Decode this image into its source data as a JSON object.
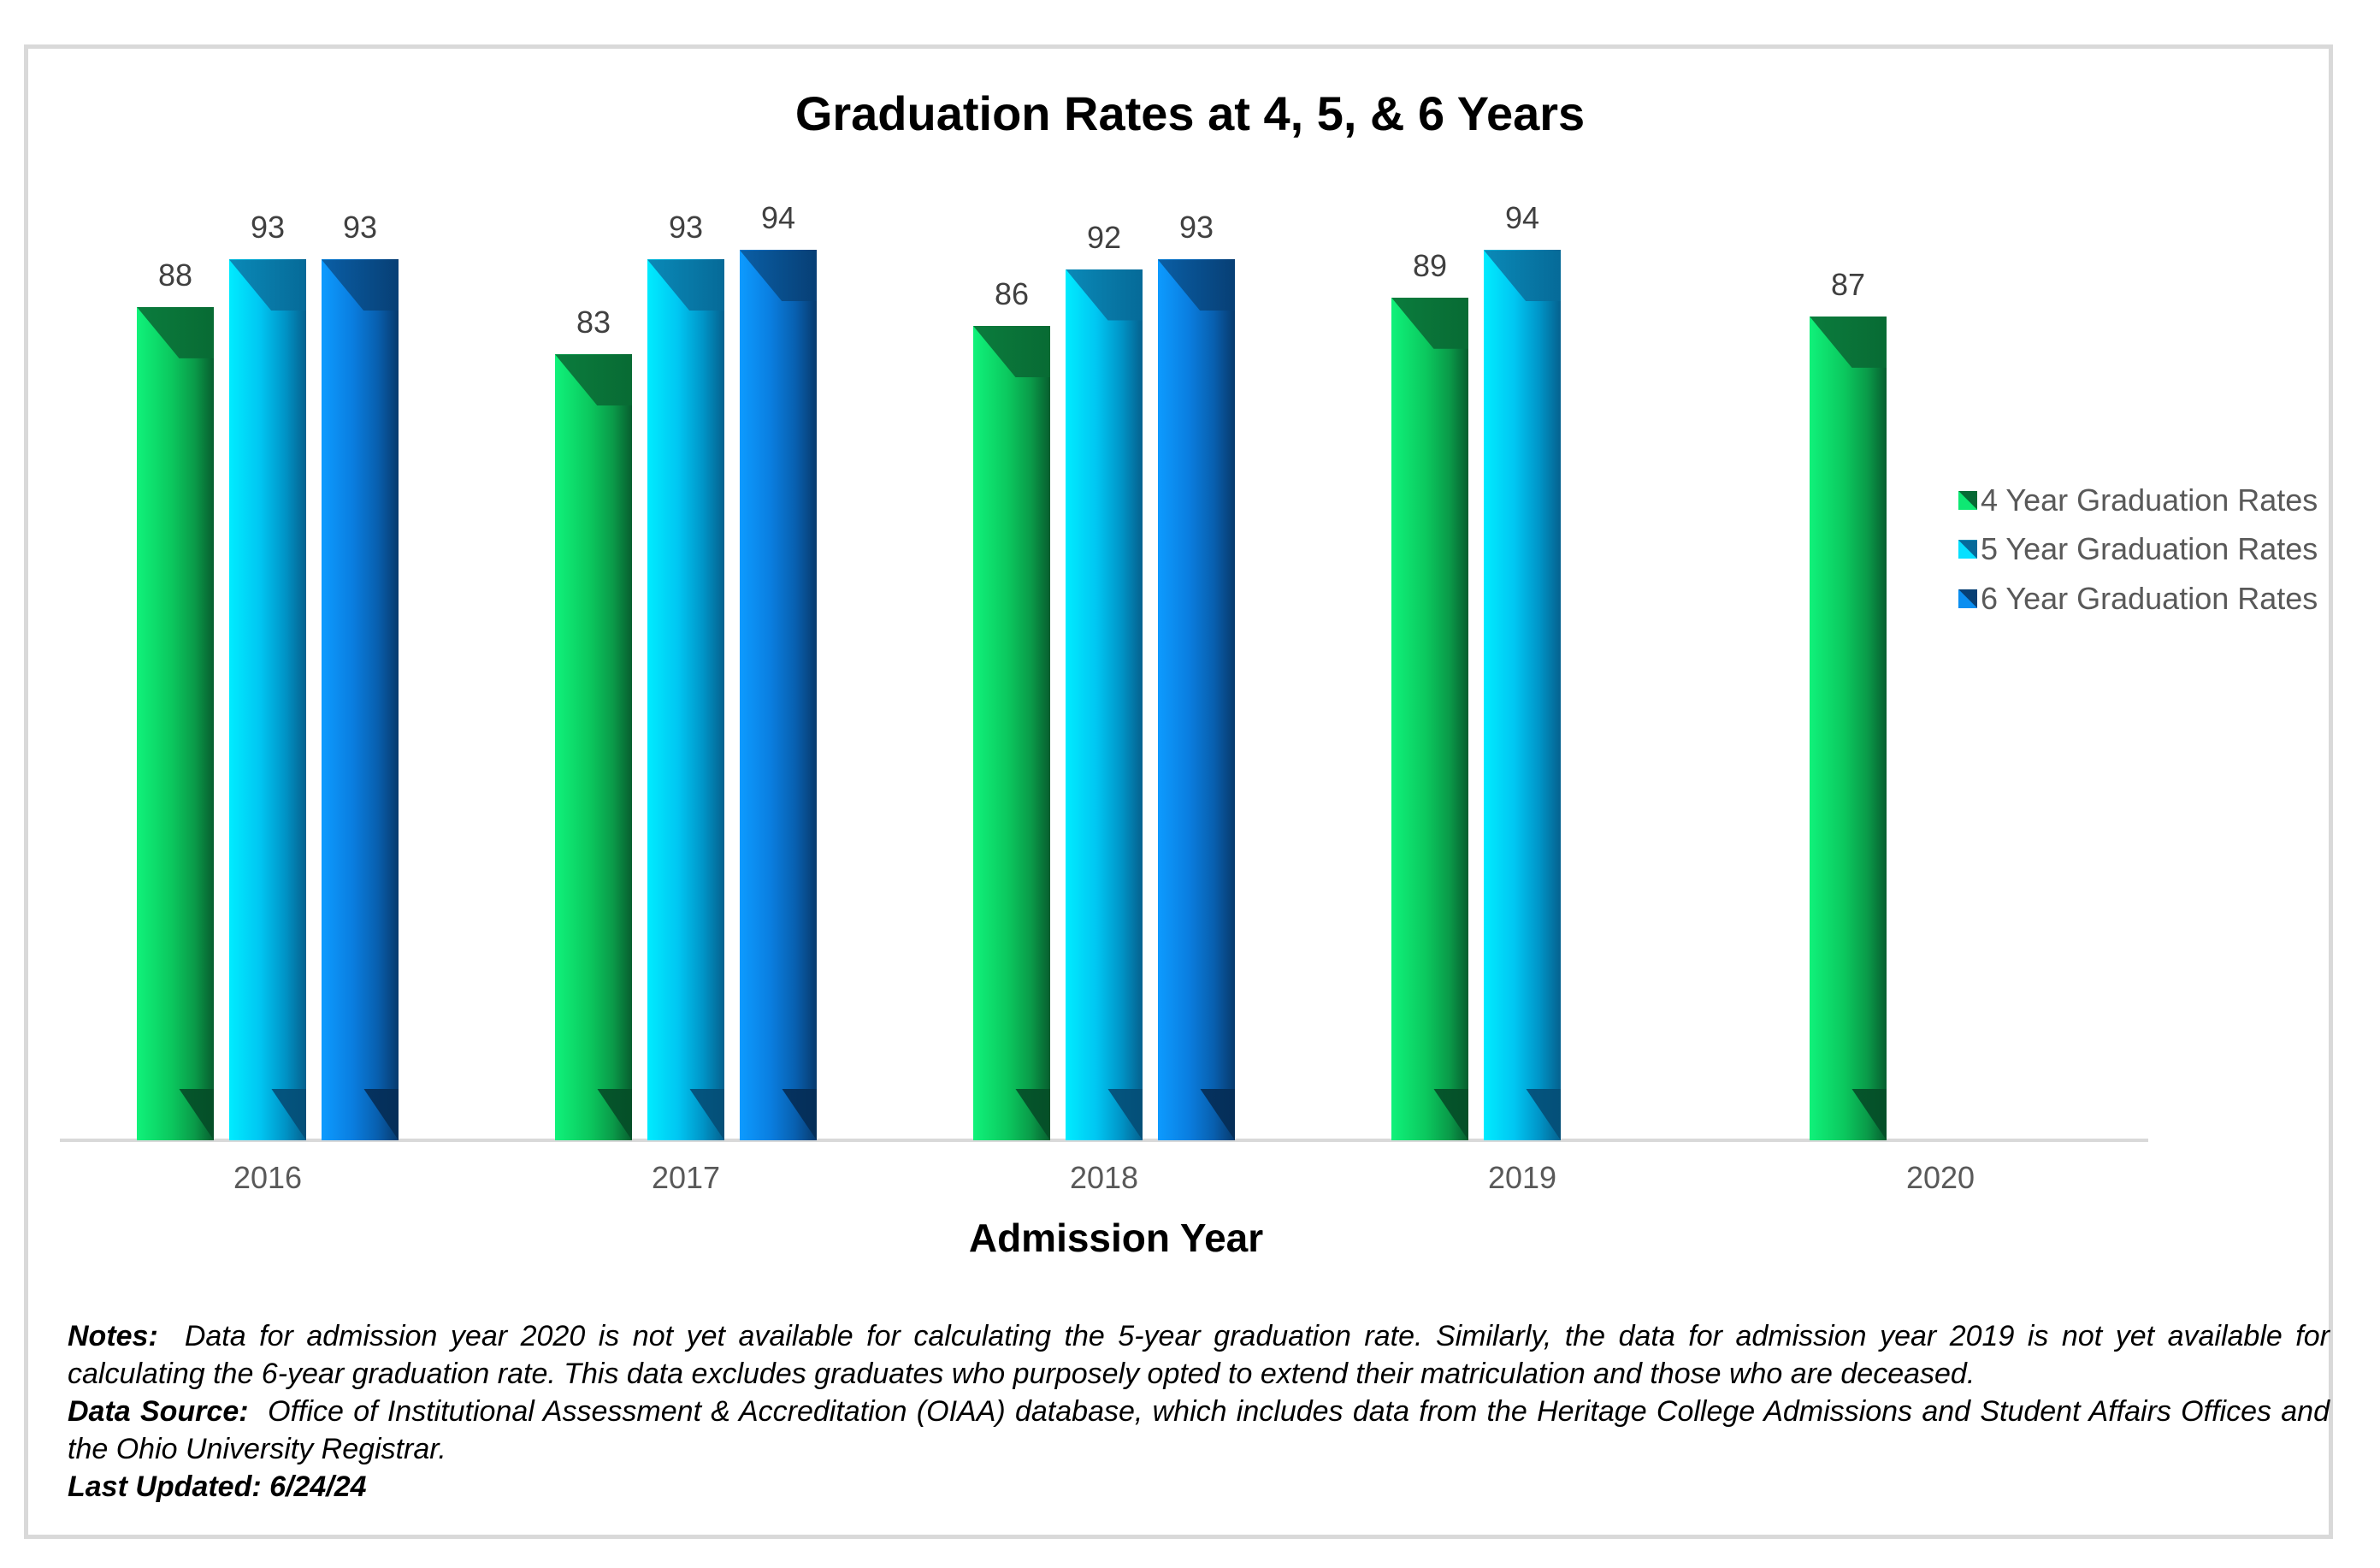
{
  "chart_data": {
    "type": "bar",
    "title": "Graduation Rates at 4, 5, & 6 Years",
    "xlabel": "Admission Year",
    "ylabel": "",
    "categories": [
      "2016",
      "2017",
      "2018",
      "2019",
      "2020"
    ],
    "series": [
      {
        "name": "4 Year Graduation Rates",
        "values": [
          88,
          83,
          86,
          89,
          87
        ],
        "color": "#0bc85e"
      },
      {
        "name": "5 Year Graduation Rates",
        "values": [
          93,
          93,
          92,
          94,
          null
        ],
        "color": "#00c6f2"
      },
      {
        "name": "6 Year Graduation Rates",
        "values": [
          93,
          94,
          93,
          null,
          null
        ],
        "color": "#0a7ee0"
      }
    ],
    "ylim": [
      0,
      100
    ],
    "grid": false,
    "data_labels": true,
    "legend_position": "right"
  },
  "title": "Graduation Rates at 4, 5, & 6 Years",
  "xaxis_title": "Admission Year",
  "categories": [
    "2016",
    "2017",
    "2018",
    "2019",
    "2020"
  ],
  "legend": [
    {
      "label": "4 Year Graduation Rates"
    },
    {
      "label": "5 Year Graduation Rates"
    },
    {
      "label": "6 Year Graduation Rates"
    }
  ],
  "notes": {
    "notes_label": "Notes:",
    "notes_text": "Data for admission year 2020 is not yet available for calculating the 5-year graduation rate. Similarly, the data for admission year 2019 is not yet available for calculating the 6-year graduation rate. This data excludes graduates who purposely opted to extend their matriculation and those who are deceased.",
    "source_label": "Data Source:",
    "source_text": "Office of Institutional Assessment & Accreditation (OIAA) database, which includes data from the Heritage College Admissions and Student Affairs Offices and the Ohio University Registrar.",
    "updated_label": "Last Updated: 6/24/24"
  }
}
